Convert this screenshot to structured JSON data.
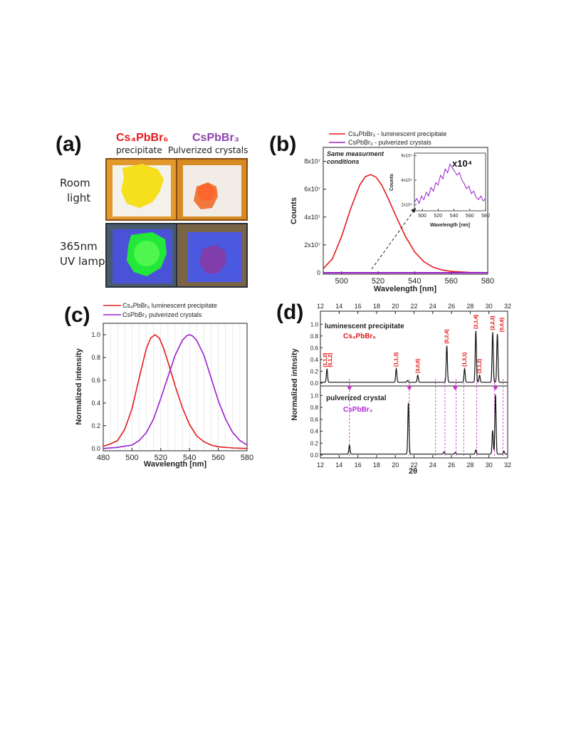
{
  "colors": {
    "cs4": "#e41a1c",
    "cspb": "#9b1fcf",
    "axis": "#222222",
    "grid": "#dddddd",
    "hkl": "#e00000",
    "ref_line": "#cc33cc"
  },
  "panel_a": {
    "letter": "(a)",
    "col1_formula": "Cs₄PbBr₆",
    "col1_sub": "precipitate",
    "col2_formula": "CsPbBr₃",
    "col2_sub": "Pulverized crystals",
    "row1_line1": "Room",
    "row1_line2": "light",
    "row2_line1": "365nm",
    "row2_line2": "UV lamp"
  },
  "panel_b": {
    "letter": "(b)",
    "legend": [
      "Cs₄PbBr₆ - luminescent precipitate",
      "CsPbBr₃ - pulverized crystals"
    ],
    "note_line1": "Same measurment",
    "note_line2": "conditions",
    "inset_factor": "x10⁴"
  },
  "panel_c": {
    "letter": "(c)",
    "legend": [
      "Cs₄PbBr₆ luminescent precipitate",
      "CsPbBr₃ pulverized crystals"
    ]
  },
  "panel_d": {
    "letter": "(d)",
    "top_label": "luminescent precipitate",
    "top_formula": "Cs₄PbBr₆",
    "bottom_label": "pulverized crystal",
    "bottom_formula": "CsPbBr₃",
    "hkl_labels": [
      "(1,1,0)",
      "(0,1,2)",
      "(1,1,3)",
      "(3,0,0)",
      "(0,2,4)",
      "(1,3,1)",
      "(2,1,4)",
      "(3,1,2)",
      "(2,2,3)",
      "(0,0,6)"
    ]
  },
  "chart_data": [
    {
      "type": "line",
      "panel": "b",
      "xlabel": "Wavelength [nm]",
      "ylabel": "Counts",
      "xlim": [
        490,
        580
      ],
      "ylim": [
        -1000000,
        90000000
      ],
      "xticks": [
        500,
        520,
        540,
        560,
        580
      ],
      "yticks": [
        0,
        20000000,
        40000000,
        60000000,
        80000000
      ],
      "ytick_labels": [
        "0",
        "2x10⁷",
        "4x10⁷",
        "6x10⁷",
        "8x10⁷"
      ],
      "series": [
        {
          "name": "Cs₄PbBr₆ - luminescent precipitate",
          "color": "#e41a1c",
          "x": [
            490,
            495,
            500,
            505,
            510,
            513,
            516,
            519,
            522,
            526,
            530,
            535,
            540,
            545,
            550,
            555,
            560,
            570,
            580
          ],
          "y": [
            3000000,
            10000000,
            26000000,
            46000000,
            63000000,
            69000000,
            70500000,
            68500000,
            63000000,
            52000000,
            40000000,
            26000000,
            15000000,
            8000000,
            4000000,
            2000000,
            1000000,
            300000,
            100000
          ]
        },
        {
          "name": "CsPbBr₃ - pulverized crystals",
          "color": "#9b1fcf",
          "x": [
            490,
            500,
            520,
            540,
            560,
            580
          ],
          "y": [
            0,
            0,
            0,
            0,
            0,
            0
          ]
        }
      ],
      "inset": {
        "xlabel": "Wavelength [nm]",
        "ylabel": "Counts",
        "xlim": [
          490,
          580
        ],
        "ylim": [
          15000,
          62000
        ],
        "xticks": [
          500,
          520,
          540,
          560,
          580
        ],
        "yticks": [
          20000,
          40000,
          60000
        ],
        "ytick_labels": [
          "2x10⁴",
          "4x10⁴",
          "6x10⁴"
        ],
        "x": [
          490,
          493,
          496,
          499,
          502,
          505,
          508,
          511,
          514,
          517,
          520,
          523,
          526,
          529,
          532,
          535,
          538,
          541,
          544,
          547,
          550,
          553,
          556,
          559,
          562,
          565,
          568,
          571,
          574,
          577,
          580
        ],
        "y": [
          22000,
          25000,
          21000,
          27000,
          24000,
          30000,
          27000,
          34000,
          31000,
          38000,
          36000,
          44000,
          41000,
          49000,
          46000,
          53000,
          50000,
          47000,
          44000,
          46000,
          40000,
          37000,
          33000,
          35000,
          29000,
          31000,
          26000,
          24000,
          27000,
          23000,
          25000
        ]
      }
    },
    {
      "type": "line",
      "panel": "c",
      "xlabel": "Wavelength [nm]",
      "ylabel": "Normalized intensity",
      "xlim": [
        480,
        580
      ],
      "ylim": [
        -0.02,
        1.1
      ],
      "xticks": [
        480,
        500,
        520,
        540,
        560,
        580
      ],
      "yticks": [
        0.0,
        0.2,
        0.4,
        0.6,
        0.8,
        1.0
      ],
      "series": [
        {
          "name": "Cs₄PbBr₆ luminescent precipitate",
          "color": "#e41a1c",
          "x": [
            480,
            485,
            490,
            495,
            500,
            505,
            510,
            513,
            516,
            519,
            522,
            526,
            530,
            535,
            540,
            545,
            550,
            555,
            560,
            570,
            580
          ],
          "y": [
            0.02,
            0.04,
            0.07,
            0.17,
            0.35,
            0.62,
            0.88,
            0.97,
            1.0,
            0.97,
            0.88,
            0.72,
            0.55,
            0.36,
            0.21,
            0.11,
            0.06,
            0.03,
            0.015,
            0.005,
            0.0
          ]
        },
        {
          "name": "CsPbBr₃ pulverized crystals",
          "color": "#9b1fcf",
          "x": [
            480,
            490,
            500,
            505,
            510,
            515,
            520,
            525,
            530,
            535,
            538,
            540,
            542,
            545,
            550,
            555,
            560,
            565,
            570,
            575,
            580
          ],
          "y": [
            0.0,
            0.01,
            0.03,
            0.07,
            0.14,
            0.26,
            0.44,
            0.63,
            0.82,
            0.95,
            0.99,
            1.0,
            0.99,
            0.95,
            0.82,
            0.62,
            0.42,
            0.26,
            0.14,
            0.07,
            0.03
          ]
        }
      ]
    },
    {
      "type": "line",
      "panel": "d",
      "xlabel": "2θ",
      "ylabel": "Normalized intnsity",
      "xlim": [
        12,
        32
      ],
      "xticks": [
        12,
        14,
        16,
        18,
        20,
        22,
        24,
        26,
        28,
        30,
        32
      ],
      "yticks": [
        0.0,
        0.2,
        0.4,
        0.6,
        0.8,
        1.0
      ],
      "series": [
        {
          "name": "Cs₄PbBr₆",
          "peaks": [
            [
              12.7,
              0.22
            ],
            [
              20.1,
              0.23
            ],
            [
              21.3,
              0.03
            ],
            [
              22.4,
              0.12
            ],
            [
              25.5,
              0.62
            ],
            [
              27.4,
              0.23
            ],
            [
              28.6,
              0.87
            ],
            [
              29.0,
              0.12
            ],
            [
              30.4,
              0.85
            ],
            [
              30.9,
              0.82
            ]
          ]
        },
        {
          "name": "CsPbBr₃",
          "peaks": [
            [
              15.1,
              0.15
            ],
            [
              21.4,
              0.86
            ],
            [
              25.2,
              0.04
            ],
            [
              26.4,
              0.03
            ],
            [
              28.6,
              0.07
            ],
            [
              30.4,
              0.4
            ],
            [
              30.7,
              1.0
            ],
            [
              31.6,
              0.05
            ]
          ],
          "reference_lines": [
            15.1,
            21.5,
            24.3,
            25.3,
            26.5,
            27.3,
            28.7,
            30.6,
            31.5
          ],
          "markers": [
            15.1,
            21.5,
            26.4,
            30.7
          ]
        }
      ]
    }
  ]
}
